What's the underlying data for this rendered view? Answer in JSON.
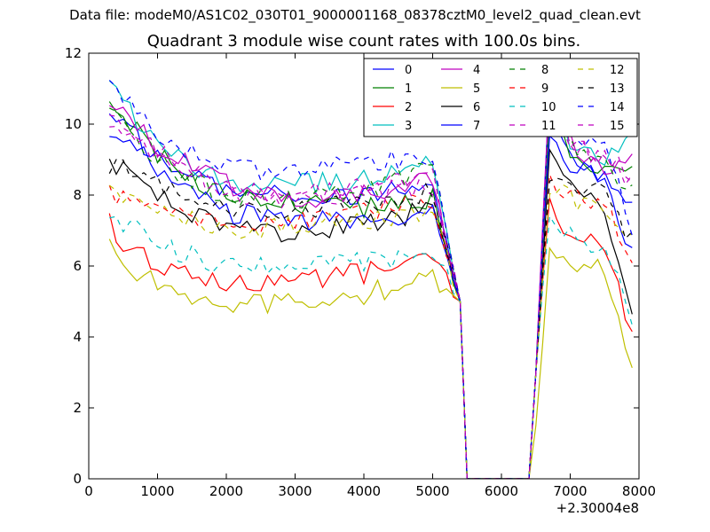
{
  "figure": {
    "suptitle": "Data file: modeM0/AS1C02_030T01_9000001168_08378cztM0_level2_quad_clean.evt",
    "title": "Quadrant 3 module wise count rates with 100.0s bins."
  },
  "chart_data": {
    "type": "line",
    "title": "Quadrant 3 module wise count rates with 100.0s bins.",
    "xlabel": "",
    "ylabel": "",
    "x_offset_label": "+2.30004e8",
    "xlim": [
      0,
      8000
    ],
    "ylim": [
      0,
      12
    ],
    "x_ticks": [
      0,
      1000,
      2000,
      3000,
      4000,
      5000,
      6000,
      7000,
      8000
    ],
    "y_ticks": [
      0,
      2,
      4,
      6,
      8,
      10,
      12
    ],
    "grid": false,
    "legend_position": "top-right",
    "legend_columns": 4,
    "series": [
      {
        "name": "0",
        "color": "#0000ff",
        "dash": "solid",
        "x": [
          300,
          1000,
          2000,
          3000,
          4000,
          5000,
          5400,
          5450,
          6400,
          6500,
          6700,
          7000,
          7500,
          7900
        ],
        "y": [
          10.5,
          9.0,
          8.1,
          8.0,
          8.0,
          8.5,
          5.0,
          0,
          0,
          3.0,
          10.4,
          9.0,
          8.4,
          7.7
        ]
      },
      {
        "name": "1",
        "color": "#008000",
        "dash": "solid",
        "x": [
          300,
          1000,
          2000,
          3000,
          4000,
          5000,
          5400,
          5450,
          6400,
          6500,
          6700,
          7000,
          7500,
          7900
        ],
        "y": [
          10.8,
          9.1,
          7.9,
          7.8,
          7.6,
          7.9,
          5.0,
          0,
          0,
          3.0,
          10.5,
          9.2,
          8.7,
          8.6
        ]
      },
      {
        "name": "2",
        "color": "#ff0000",
        "dash": "solid",
        "x": [
          300,
          500,
          1000,
          2000,
          3000,
          4000,
          4600,
          5000,
          5400,
          5450,
          6400,
          6500,
          6700,
          7000,
          7500,
          7900
        ],
        "y": [
          7.2,
          6.7,
          6.1,
          5.5,
          5.6,
          5.8,
          6.1,
          6.3,
          5.0,
          0,
          0,
          3.0,
          7.8,
          6.6,
          6.6,
          4.0
        ]
      },
      {
        "name": "3",
        "color": "#00bfbf",
        "dash": "solid",
        "x": [
          300,
          1000,
          2000,
          3000,
          4000,
          5000,
          5400,
          5450,
          6400,
          6500,
          6700,
          7000,
          7500,
          7900
        ],
        "y": [
          11.0,
          9.5,
          8.3,
          8.3,
          8.4,
          8.9,
          5.0,
          0,
          0,
          3.0,
          11.0,
          9.6,
          9.1,
          9.7
        ]
      },
      {
        "name": "4",
        "color": "#bf00bf",
        "dash": "solid",
        "x": [
          300,
          1000,
          2000,
          3000,
          4000,
          5000,
          5400,
          5450,
          6400,
          6500,
          6700,
          7000,
          7500,
          7900
        ],
        "y": [
          10.5,
          9.4,
          8.3,
          7.9,
          8.0,
          8.4,
          5.0,
          0,
          0,
          3.0,
          10.9,
          9.5,
          8.8,
          8.9
        ]
      },
      {
        "name": "5",
        "color": "#bfbf00",
        "dash": "solid",
        "x": [
          300,
          500,
          1000,
          2000,
          3000,
          4000,
          5000,
          5400,
          5450,
          6400,
          6500,
          6700,
          7000,
          7500,
          7900
        ],
        "y": [
          6.5,
          6.0,
          5.5,
          4.9,
          5.0,
          5.2,
          5.7,
          5.0,
          0,
          0,
          1.5,
          6.5,
          6.0,
          5.9,
          3.3
        ]
      },
      {
        "name": "6",
        "color": "#000000",
        "dash": "solid",
        "x": [
          300,
          1000,
          2000,
          3000,
          4000,
          5000,
          5400,
          5450,
          6400,
          6500,
          6700,
          7000,
          7500,
          7900
        ],
        "y": [
          9.0,
          8.0,
          7.0,
          6.9,
          7.2,
          7.6,
          5.0,
          0,
          0,
          3.0,
          9.0,
          8.2,
          7.6,
          4.5
        ]
      },
      {
        "name": "7",
        "color": "#0000ff",
        "dash": "solid",
        "x": [
          300,
          1000,
          2000,
          3000,
          4000,
          5000,
          5400,
          5450,
          6400,
          6500,
          6700,
          7000,
          7500,
          7900
        ],
        "y": [
          9.9,
          8.8,
          7.5,
          7.3,
          7.2,
          7.5,
          5.0,
          0,
          0,
          3.0,
          9.8,
          8.9,
          8.2,
          6.5
        ]
      },
      {
        "name": "8",
        "color": "#008000",
        "dash": "dashed",
        "x": [
          300,
          1000,
          2000,
          3000,
          4000,
          5000,
          5400,
          5450,
          6400,
          6500,
          6700,
          7000,
          7500,
          7900
        ],
        "y": [
          10.4,
          9.0,
          7.9,
          7.9,
          8.1,
          8.8,
          5.0,
          0,
          0,
          3.0,
          10.5,
          9.4,
          8.8,
          8.2
        ]
      },
      {
        "name": "9",
        "color": "#ff0000",
        "dash": "dashed",
        "x": [
          300,
          1000,
          2000,
          3000,
          4000,
          5000,
          5400,
          5450,
          6400,
          6500,
          6700,
          7000,
          7500,
          7900
        ],
        "y": [
          8.0,
          7.7,
          7.2,
          7.3,
          7.5,
          7.9,
          5.0,
          0,
          0,
          3.0,
          8.5,
          8.0,
          7.7,
          6.3
        ]
      },
      {
        "name": "10",
        "color": "#00bfbf",
        "dash": "dashed",
        "x": [
          300,
          1000,
          2000,
          3000,
          4000,
          5000,
          5400,
          5450,
          6400,
          6500,
          6700,
          7000,
          7500,
          7900
        ],
        "y": [
          7.5,
          6.6,
          6.0,
          6.1,
          6.1,
          6.4,
          5.0,
          0,
          0,
          3.0,
          7.2,
          6.8,
          6.6,
          4.5
        ]
      },
      {
        "name": "11",
        "color": "#bf00bf",
        "dash": "dashed",
        "x": [
          300,
          1000,
          2000,
          3000,
          4000,
          5000,
          5400,
          5450,
          6400,
          6500,
          6700,
          7000,
          7500,
          7900
        ],
        "y": [
          10.2,
          9.1,
          8.1,
          7.8,
          8.0,
          8.3,
          5.0,
          0,
          0,
          3.0,
          11.0,
          9.6,
          9.0,
          8.6
        ]
      },
      {
        "name": "12",
        "color": "#bfbf00",
        "dash": "dashed",
        "x": [
          300,
          1000,
          2000,
          3000,
          4000,
          5000,
          5400,
          5450,
          6400,
          6500,
          6700,
          7000,
          7500,
          7900
        ],
        "y": [
          8.1,
          7.6,
          7.0,
          7.1,
          7.3,
          7.6,
          5.0,
          0,
          0,
          3.0,
          8.3,
          7.9,
          7.5,
          6.6
        ]
      },
      {
        "name": "13",
        "color": "#000000",
        "dash": "dashed",
        "x": [
          300,
          1000,
          2000,
          3000,
          4000,
          5000,
          5400,
          5450,
          6400,
          6500,
          6700,
          7000,
          7500,
          7900
        ],
        "y": [
          8.9,
          8.3,
          7.5,
          7.6,
          7.8,
          8.1,
          5.0,
          0,
          0,
          3.0,
          8.6,
          8.4,
          8.0,
          6.7
        ]
      },
      {
        "name": "14",
        "color": "#0000ff",
        "dash": "dashed",
        "x": [
          300,
          1000,
          2000,
          3000,
          4000,
          5000,
          5400,
          5450,
          6400,
          6500,
          6700,
          7000,
          7500,
          7900
        ],
        "y": [
          11.2,
          9.6,
          8.8,
          8.6,
          8.9,
          9.1,
          5.0,
          0,
          0,
          3.0,
          11.1,
          9.8,
          9.4,
          7.0
        ]
      },
      {
        "name": "15",
        "color": "#bf00bf",
        "dash": "dashed",
        "x": [
          300,
          1000,
          2000,
          3000,
          4000,
          5000,
          5400,
          5450,
          6400,
          6500,
          6700,
          7000,
          7500,
          7900
        ],
        "y": [
          10.3,
          9.2,
          8.2,
          8.0,
          8.2,
          8.6,
          5.0,
          0,
          0,
          3.0,
          10.8,
          9.5,
          9.0,
          8.4
        ]
      }
    ]
  }
}
